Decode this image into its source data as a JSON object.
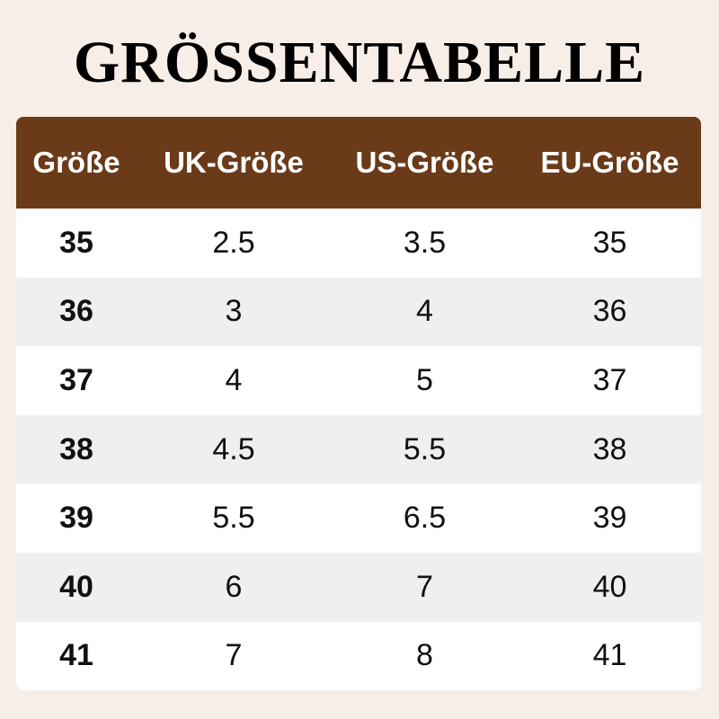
{
  "header": {
    "title": "GRÖSSENTABELLE"
  },
  "table": {
    "columns": [
      "Größe",
      "UK-Größe",
      "US-Größe",
      "EU-Größe"
    ],
    "rows": [
      [
        "35",
        "2.5",
        "3.5",
        "35"
      ],
      [
        "36",
        "3",
        "4",
        "36"
      ],
      [
        "37",
        "4",
        "5",
        "37"
      ],
      [
        "38",
        "4.5",
        "5.5",
        "38"
      ],
      [
        "39",
        "5.5",
        "6.5",
        "39"
      ],
      [
        "40",
        "6",
        "7",
        "40"
      ],
      [
        "41",
        "7",
        "8",
        "41"
      ]
    ]
  }
}
